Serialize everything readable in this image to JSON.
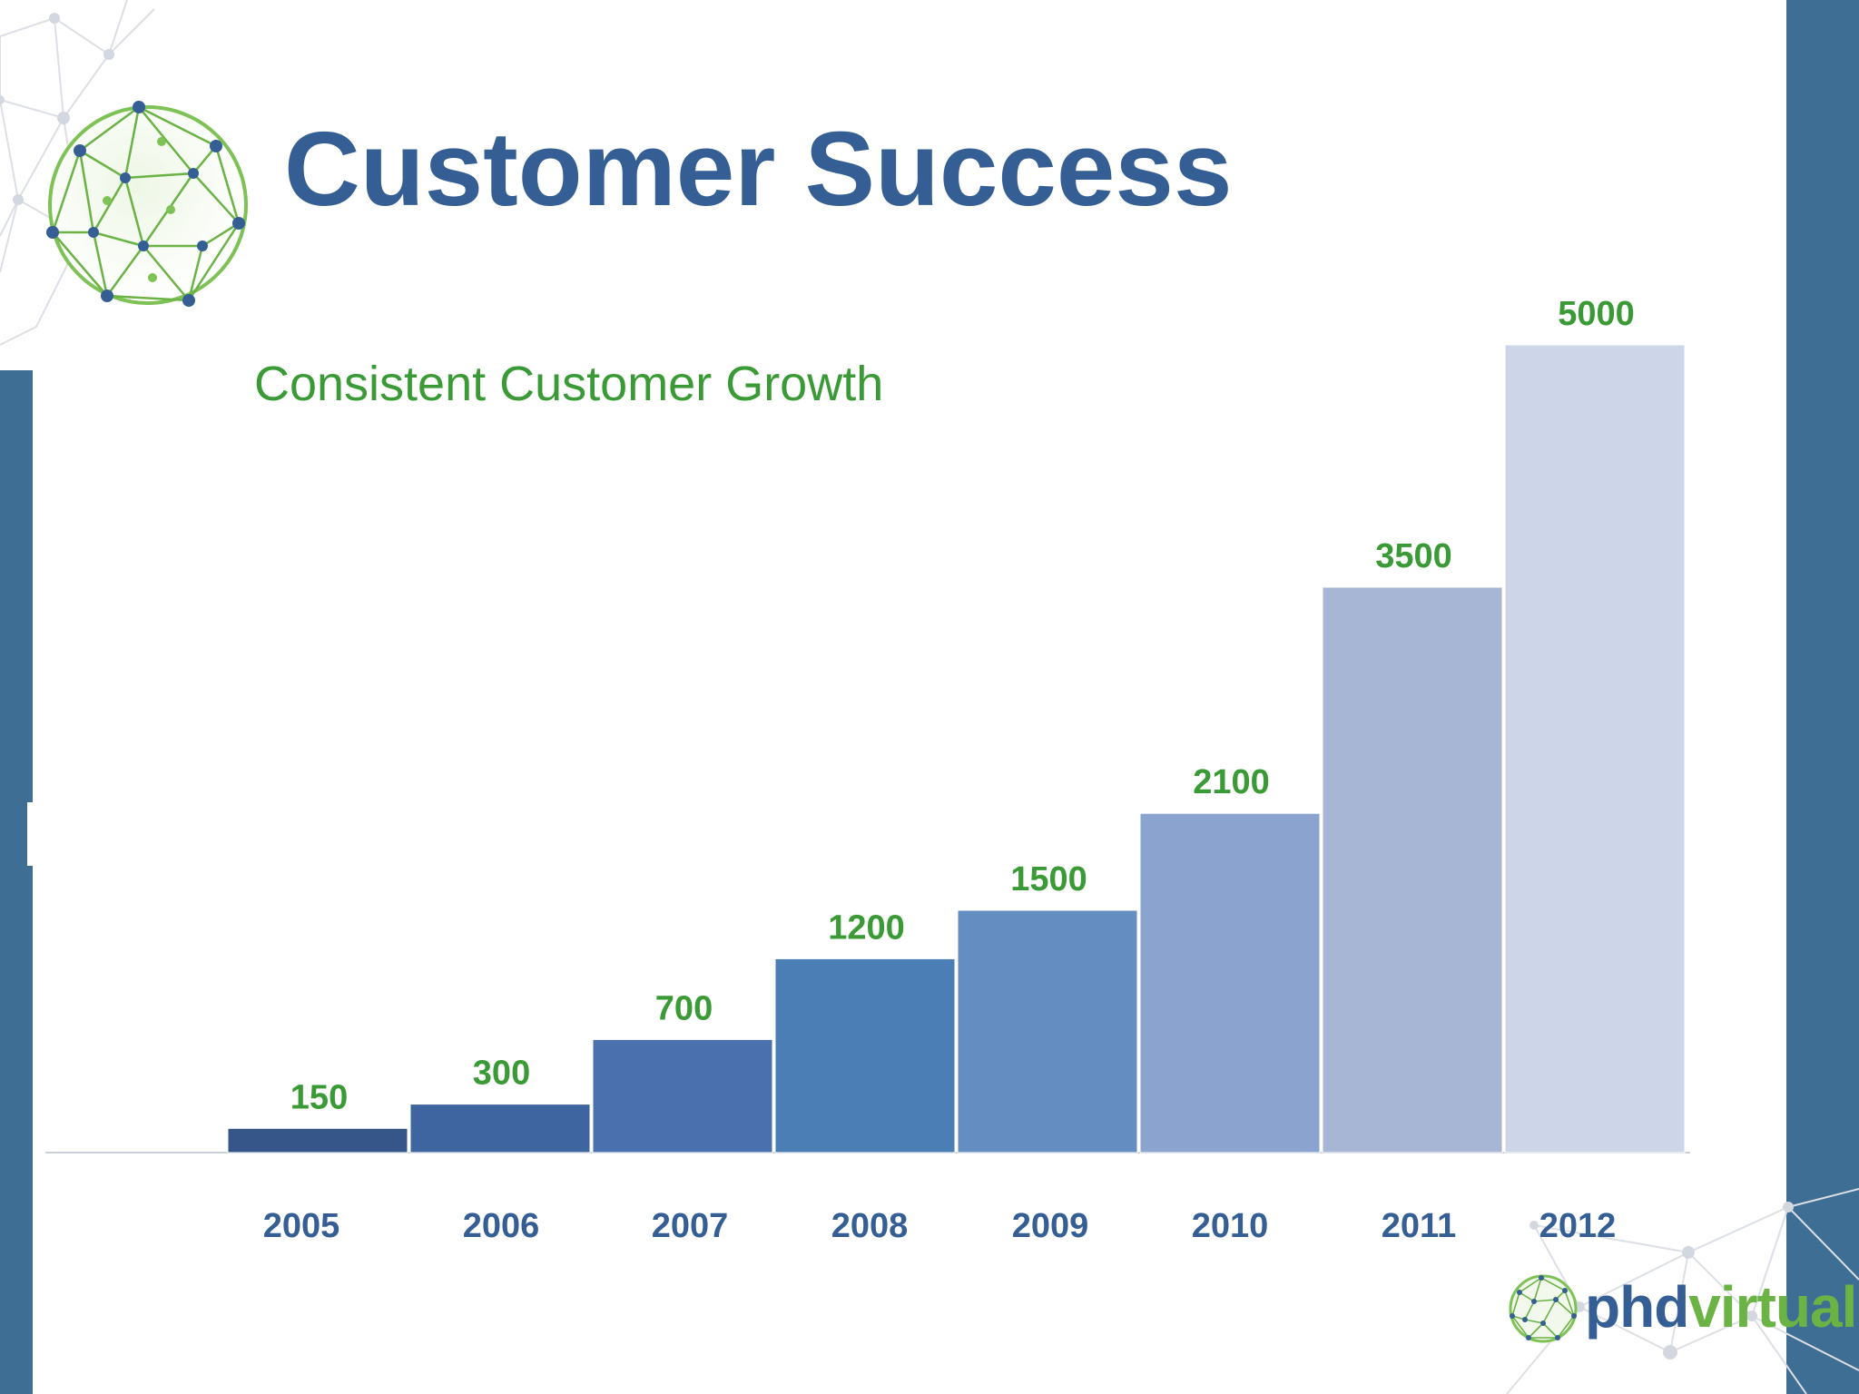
{
  "slide": {
    "title": "Customer Success",
    "subtitle": "Consistent Customer Growth"
  },
  "brand": {
    "logo_part1": "phd",
    "logo_part2": "virtual"
  },
  "colors": {
    "title": "#355f94",
    "subtitle": "#3a9a35",
    "data_label": "#3a9a35",
    "tick_label": "#355f94",
    "side_band": "#3e6e93",
    "logo_part1": "#355f94",
    "logo_part2": "#6ab344",
    "bars": [
      "#36568a",
      "#3f65a0",
      "#4a70ad",
      "#4b7eb5",
      "#648ec2",
      "#8ba4cf",
      "#a6b6d4",
      "#cdd5e8"
    ]
  },
  "chart_data": {
    "type": "bar",
    "categories": [
      "2005",
      "2006",
      "2007",
      "2008",
      "2009",
      "2010",
      "2011",
      "2012"
    ],
    "values": [
      150,
      300,
      700,
      1200,
      1500,
      2100,
      3500,
      5000
    ],
    "title": "Consistent Customer Growth",
    "xlabel": "",
    "ylabel": "",
    "ylim": [
      0,
      5000
    ],
    "grid": false,
    "legend": "none",
    "data_labels": true
  }
}
